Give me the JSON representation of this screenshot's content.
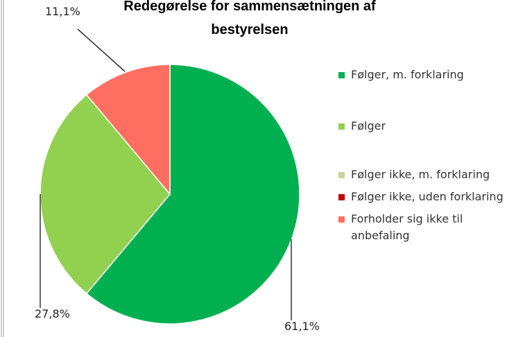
{
  "chart_data": {
    "type": "pie",
    "title": "Redegørelse for sammensætningen af bestyrelsen",
    "categories": [
      "Følger, m. forklaring",
      "Følger",
      "Følger ikke, m. forklaring",
      "Følger ikke, uden forklaring",
      "Forholder sig ikke til anbefaling"
    ],
    "values": [
      61.1,
      27.8,
      0,
      0,
      11.1
    ],
    "value_labels": [
      "61,1%",
      "27,8%",
      null,
      null,
      "11,1%"
    ],
    "colors": [
      "#00b050",
      "#92d050",
      "#c4d79b",
      "#c00000",
      "#ff6f61"
    ],
    "legend": "right"
  }
}
